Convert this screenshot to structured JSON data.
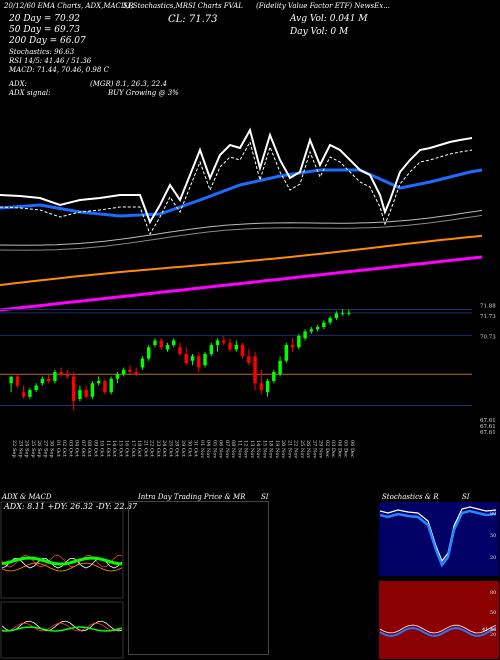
{
  "header": {
    "line1": "20/12/60 EMA Charts, ADX,MACD,R",
    "line1b": "SI,Stochastics,MR",
    "line1c": "SI Charts FVAL",
    "line1d": "(Fidelity Value Factor ETF) NewsEx...",
    "ema20": "20  Day = 70.92",
    "ema50": "50  Day = 69.73",
    "ema200": "200  Day = 66.07",
    "stoch": "Stochastics: 96.63",
    "rsi": "RSI 14/5: 41.46  /  51.36",
    "macd": "MACD: 71.44,  70.46,  0.98  C",
    "close": "CL: 71.73",
    "avgvol": "Avg Vol: 0.041 M",
    "dayvol": "Day Vol: 0   M",
    "adx_label": "ADX:",
    "adx_value": "(MGR) 8.1,  26.3,  22.4",
    "adx_signal_label": "ADX  signal:",
    "adx_signal_value": "BUY Growing @ 3%"
  },
  "price_axis_labels": [
    "71.88",
    "71.73",
    "70.73",
    "67.61",
    "67.61",
    "67.61"
  ],
  "x_dates": [
    "22 Sep",
    "23 Sep",
    "24 Sep",
    "25 Sep",
    "26 Sep",
    "27 Sep",
    "30 Sep",
    "01 Oct",
    "02 Oct",
    "03 Oct",
    "04 Oct",
    "07 Oct",
    "08 Oct",
    "09 Oct",
    "10 Oct",
    "11 Oct",
    "14 Oct",
    "15 Oct",
    "16 Oct",
    "17 Oct",
    "18 Oct",
    "21 Oct",
    "22 Oct",
    "23 Oct",
    "24 Oct",
    "25 Oct",
    "28 Oct",
    "29 Oct",
    "30 Oct",
    "31 Oct",
    "01 Nov",
    "04 Nov",
    "05 Nov",
    "06 Nov",
    "07 Nov",
    "08 Nov",
    "11 Nov",
    "12 Nov",
    "13 Nov",
    "14 Nov",
    "15 Nov",
    "18 Nov",
    "19 Nov",
    "20 Nov",
    "21 Nov",
    "22 Nov",
    "25 Nov",
    "26 Nov",
    "27 Nov",
    "29 Nov",
    "02 Dec",
    "03 Dec",
    "04 Dec",
    "05 Dec",
    "06 Dec"
  ],
  "panels": {
    "adx_title": "ADX  & MACD",
    "adx_values": "ADX: 8.11  +DY: 26.32  -DY: 22.37",
    "intraday_title": "Intra  Day Trading Price  & MR",
    "intraday_si": "SI",
    "stoch_title": "Stochastics & R",
    "stoch_si": "SI",
    "stoch_ticks": [
      "80",
      "50",
      "20"
    ],
    "rsi_ticks": [
      "80",
      "50",
      "20"
    ],
    "rsi_last": "41.46"
  },
  "chart_data": {
    "type": "candlestick",
    "title": "FVAL (Fidelity Value Factor ETF)",
    "ylim": [
      66.3,
      72.3
    ],
    "candles": [
      {
        "o": 68.6,
        "h": 68.9,
        "l": 68.2,
        "c": 68.9
      },
      {
        "o": 68.9,
        "h": 69.0,
        "l": 68.4,
        "c": 68.5
      },
      {
        "o": 68.2,
        "h": 68.5,
        "l": 67.9,
        "c": 68.0
      },
      {
        "o": 68.0,
        "h": 68.4,
        "l": 67.9,
        "c": 68.3
      },
      {
        "o": 68.3,
        "h": 68.6,
        "l": 68.2,
        "c": 68.5
      },
      {
        "o": 68.6,
        "h": 68.9,
        "l": 68.5,
        "c": 68.8
      },
      {
        "o": 68.8,
        "h": 69.0,
        "l": 68.6,
        "c": 68.7
      },
      {
        "o": 68.7,
        "h": 69.2,
        "l": 68.6,
        "c": 69.1
      },
      {
        "o": 69.1,
        "h": 69.3,
        "l": 68.9,
        "c": 69.0
      },
      {
        "o": 69.0,
        "h": 69.2,
        "l": 68.8,
        "c": 68.9
      },
      {
        "o": 68.9,
        "h": 69.1,
        "l": 67.4,
        "c": 67.8
      },
      {
        "o": 67.9,
        "h": 68.5,
        "l": 67.8,
        "c": 68.3
      },
      {
        "o": 68.3,
        "h": 68.5,
        "l": 67.9,
        "c": 68.0
      },
      {
        "o": 68.0,
        "h": 68.7,
        "l": 67.9,
        "c": 68.6
      },
      {
        "o": 68.6,
        "h": 68.9,
        "l": 68.5,
        "c": 68.7
      },
      {
        "o": 68.7,
        "h": 68.8,
        "l": 68.1,
        "c": 68.2
      },
      {
        "o": 68.2,
        "h": 68.9,
        "l": 68.1,
        "c": 68.8
      },
      {
        "o": 68.8,
        "h": 69.1,
        "l": 68.6,
        "c": 69.0
      },
      {
        "o": 69.0,
        "h": 69.3,
        "l": 68.9,
        "c": 69.2
      },
      {
        "o": 69.2,
        "h": 69.4,
        "l": 69.0,
        "c": 69.1
      },
      {
        "o": 69.1,
        "h": 69.3,
        "l": 68.9,
        "c": 69.0
      },
      {
        "o": 69.3,
        "h": 69.8,
        "l": 69.2,
        "c": 69.7
      },
      {
        "o": 69.7,
        "h": 70.3,
        "l": 69.6,
        "c": 70.2
      },
      {
        "o": 70.3,
        "h": 70.6,
        "l": 70.2,
        "c": 70.5
      },
      {
        "o": 70.5,
        "h": 70.6,
        "l": 70.1,
        "c": 70.2
      },
      {
        "o": 70.1,
        "h": 70.4,
        "l": 70.0,
        "c": 70.3
      },
      {
        "o": 70.3,
        "h": 70.6,
        "l": 70.2,
        "c": 70.5
      },
      {
        "o": 70.2,
        "h": 70.4,
        "l": 69.8,
        "c": 69.9
      },
      {
        "o": 69.9,
        "h": 70.2,
        "l": 69.4,
        "c": 69.5
      },
      {
        "o": 69.6,
        "h": 69.9,
        "l": 69.4,
        "c": 69.8
      },
      {
        "o": 69.8,
        "h": 70.0,
        "l": 69.1,
        "c": 69.3
      },
      {
        "o": 69.4,
        "h": 70.0,
        "l": 69.3,
        "c": 69.9
      },
      {
        "o": 69.9,
        "h": 70.4,
        "l": 69.8,
        "c": 70.3
      },
      {
        "o": 70.3,
        "h": 70.6,
        "l": 70.0,
        "c": 70.5
      },
      {
        "o": 70.5,
        "h": 70.7,
        "l": 70.3,
        "c": 70.4
      },
      {
        "o": 70.4,
        "h": 70.6,
        "l": 70.0,
        "c": 70.1
      },
      {
        "o": 70.1,
        "h": 70.5,
        "l": 70.0,
        "c": 70.3
      },
      {
        "o": 70.3,
        "h": 70.4,
        "l": 69.7,
        "c": 69.8
      },
      {
        "o": 69.8,
        "h": 70.1,
        "l": 69.4,
        "c": 69.5
      },
      {
        "o": 69.8,
        "h": 70.0,
        "l": 68.3,
        "c": 68.6
      },
      {
        "o": 68.6,
        "h": 69.2,
        "l": 68.1,
        "c": 68.3
      },
      {
        "o": 68.2,
        "h": 68.8,
        "l": 68.0,
        "c": 68.7
      },
      {
        "o": 68.7,
        "h": 69.2,
        "l": 68.6,
        "c": 69.1
      },
      {
        "o": 69.0,
        "h": 69.8,
        "l": 68.9,
        "c": 69.6
      },
      {
        "o": 69.6,
        "h": 70.4,
        "l": 69.5,
        "c": 70.3
      },
      {
        "o": 70.3,
        "h": 70.6,
        "l": 70.0,
        "c": 70.2
      },
      {
        "o": 70.2,
        "h": 70.8,
        "l": 70.1,
        "c": 70.7
      },
      {
        "o": 70.6,
        "h": 71.0,
        "l": 70.5,
        "c": 70.9
      },
      {
        "o": 70.9,
        "h": 71.1,
        "l": 70.8,
        "c": 71.0
      },
      {
        "o": 71.0,
        "h": 71.2,
        "l": 70.9,
        "c": 71.1
      },
      {
        "o": 71.1,
        "h": 71.4,
        "l": 71.0,
        "c": 71.3
      },
      {
        "o": 71.3,
        "h": 71.6,
        "l": 71.2,
        "c": 71.5
      },
      {
        "o": 71.5,
        "h": 71.8,
        "l": 71.4,
        "c": 71.7
      },
      {
        "o": 71.7,
        "h": 71.9,
        "l": 71.6,
        "c": 71.73
      },
      {
        "o": 71.73,
        "h": 71.88,
        "l": 71.6,
        "c": 71.73
      }
    ],
    "levels": [
      71.88,
      71.73,
      70.73,
      69.0,
      67.61
    ],
    "ema20_end": 70.92,
    "ema50_end": 69.73,
    "ema200_end": 66.07
  },
  "colors": {
    "up": "#00ff00",
    "down": "#ff0000",
    "ema20": "#ffffff",
    "ema50": "#1e6bff",
    "ema200": "#ff00ff",
    "orange": "#ff8c00",
    "grid": "#223399"
  }
}
